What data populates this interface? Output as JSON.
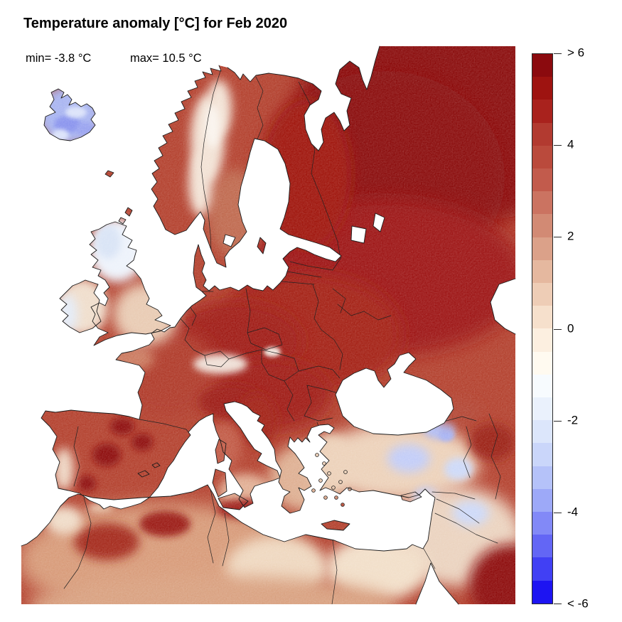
{
  "title": "Temperature anomaly [°C] for Feb 2020",
  "stats": {
    "min_label": "min= -3.8 °C",
    "max_label": "max= 10.5 °C"
  },
  "chart_data": {
    "type": "heatmap",
    "title": "Temperature anomaly [°C] for Feb 2020",
    "variable": "Temperature anomaly",
    "unit": "°C",
    "period": "Feb 2020",
    "geography": "Europe, North Africa and Middle East",
    "min_c": -3.8,
    "max_c": 10.5,
    "colorbar": {
      "orientation": "vertical",
      "position": "right",
      "tick_labels": [
        "> 6",
        "4",
        "2",
        "0",
        "-2",
        "-4",
        "< -6"
      ],
      "tick_values": [
        6,
        4,
        2,
        0,
        -2,
        -4,
        -6
      ],
      "value_range": [
        -6,
        6
      ],
      "segment_step_c": 0.5,
      "colors": [
        "#8B0A0E",
        "#9E1310",
        "#A9221D",
        "#B23A30",
        "#BA4A3C",
        "#C25B4C",
        "#CB7361",
        "#D28A74",
        "#DBA189",
        "#E5B89F",
        "#EECDB6",
        "#F6E0CC",
        "#FCEFE0",
        "#FFFAF0",
        "#F7FBFE",
        "#EAF1FC",
        "#DCE6FB",
        "#CAD6FA",
        "#B5C2F9",
        "#9DA9F8",
        "#8289F7",
        "#6366F5",
        "#4140F4",
        "#1D14F2"
      ]
    },
    "sea_color": "#FFFFFF",
    "coastline_color": "#1B1B1B",
    "border_color": "#222222",
    "region_fills": {
      "land_base": "#B4422F",
      "ne_russia": "#8B0A0E",
      "russia_mid": "#9E1712",
      "east_europe": "#A52418",
      "finland": "#A01410",
      "central_europe_dark": "#A01C14",
      "sweden_mid": "#C06A4F",
      "scandes_pale": "#F3E3D6",
      "scandes_white": "#FAF4EE",
      "alps_pale": "#EFDFD6",
      "tatras_pale": "#F2E6DE",
      "france": "#B03B2B",
      "brittany": "#CC7C61",
      "iberia_dark_spot": "#8E1010",
      "iberia_pale_spot": "#EFD7C4",
      "england": "#E9CBB3",
      "scotland_pale": "#EEF3FB",
      "scotland_blue": "#D9E4F6",
      "ireland": "#F0DECC",
      "ireland_west": "#E4ECF8",
      "italy_north": "#9E1B12",
      "adriatic_east_dark": "#A32015",
      "italy_central": "#C25B47",
      "italy_south": "#E2B095",
      "greece": "#DFB093",
      "aegean_coast": "#EBCDB4",
      "turkey": "#EDD2BA",
      "turkey_blue_1": "#B3BFF5",
      "turkey_blue_2": "#C3CDF8",
      "turkey_blue_3": "#A8B4F3",
      "turkey_dark_spot": "#A63420",
      "caucasus": "#B44734",
      "nw_iran_dark": "#9C2417",
      "mideast": "#EBD3BF",
      "saudi_dark": "#8E0F0D",
      "iraq_blue": "#CDD9F8",
      "egypt_pale": "#F2DFC9",
      "libya_pale": "#EFD8C0",
      "north_africa": "#D89B79",
      "atlas_dark_1": "#A52A1B",
      "atlas_dark_2": "#9C1F14",
      "algeria_coast_dark": "#A0241A",
      "morocco_pale": "#F0DCC8",
      "sahara_south": "#D9A180",
      "iceland_base": "#A9B5F1",
      "iceland_blue_1": "#8A94EE",
      "iceland_blue_2": "#99A3F0",
      "iceland_pale": "#DCE3FA"
    },
    "regions": [
      {
        "region": "Northwest Russia / far northeast Europe",
        "anomaly_c": 6.0
      },
      {
        "region": "Finland",
        "anomaly_c": 5.5
      },
      {
        "region": "Baltic states, Belarus, western Russia",
        "anomaly_c": 5.0
      },
      {
        "region": "Scandinavian mountains (Norway/Sweden ridge)",
        "anomaly_c": 0.5
      },
      {
        "region": "Norway coast",
        "anomaly_c": 3.5
      },
      {
        "region": "Sweden (south/central)",
        "anomaly_c": 3.0
      },
      {
        "region": "Central & Eastern Europe (Germany–Poland–Ukraine)",
        "anomaly_c": 4.5
      },
      {
        "region": "France",
        "anomaly_c": 4.0
      },
      {
        "region": "Alps",
        "anomaly_c": 1.0
      },
      {
        "region": "England & Wales",
        "anomaly_c": 1.5
      },
      {
        "region": "Scotland",
        "anomaly_c": 0.0
      },
      {
        "region": "Ireland",
        "anomaly_c": 1.0
      },
      {
        "region": "Iceland",
        "anomaly_c": -2.0
      },
      {
        "region": "Iberian Peninsula",
        "anomaly_c": 4.0
      },
      {
        "region": "Northern Italy & northern Balkans",
        "anomaly_c": 4.5
      },
      {
        "region": "Southern Italy & Sicily",
        "anomaly_c": 2.0
      },
      {
        "region": "Greece & Aegean",
        "anomaly_c": 1.5
      },
      {
        "region": "Central Turkey",
        "anomaly_c": 1.0
      },
      {
        "region": "Eastern Turkey / Syria cold spots",
        "anomaly_c": -1.5
      },
      {
        "region": "Levant, Iraq",
        "anomaly_c": 1.0
      },
      {
        "region": "NE Saudi Arabia / Persian Gulf corner",
        "anomaly_c": 5.5
      },
      {
        "region": "Atlas Mountains (Morocco/Algeria)",
        "anomaly_c": 4.0
      },
      {
        "region": "North African coast & Sahara",
        "anomaly_c": 2.5
      }
    ]
  }
}
